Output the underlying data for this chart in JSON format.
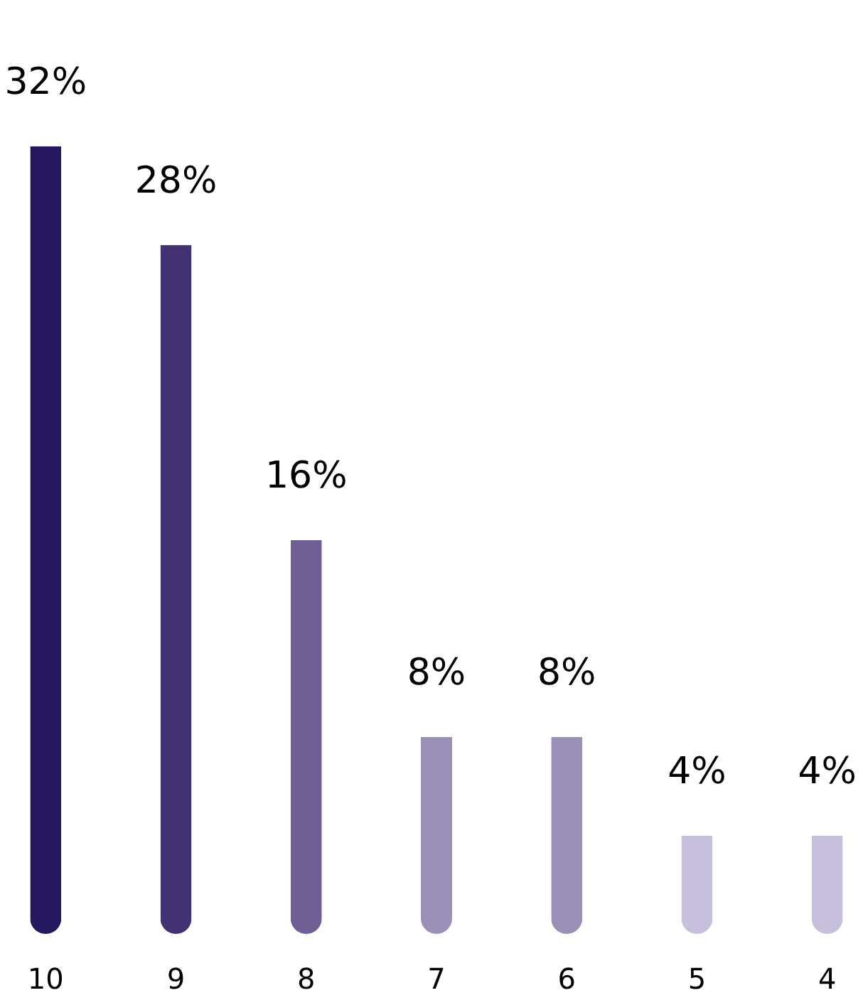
{
  "chart_data": {
    "type": "bar",
    "categories": [
      "10",
      "9",
      "8",
      "7",
      "6",
      "5",
      "4"
    ],
    "values": [
      32,
      28,
      16,
      8,
      8,
      4,
      4
    ],
    "colors": [
      "#25185e",
      "#433272",
      "#6e5e94",
      "#9a90b8",
      "#9a90b8",
      "#c6c0dc",
      "#c6c0dc"
    ],
    "value_labels": [
      "32%",
      "28%",
      "16%",
      "8%",
      "8%",
      "4%",
      "4%"
    ],
    "grid": false,
    "tick_labels": "x"
  }
}
